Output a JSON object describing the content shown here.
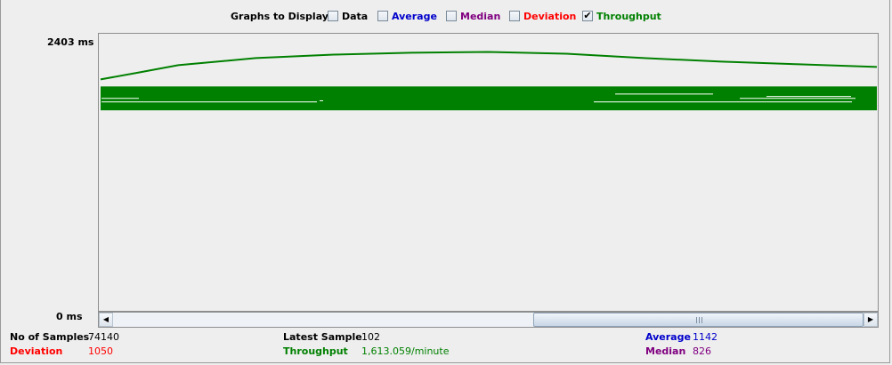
{
  "graphs": {
    "title": "Graphs to Display",
    "options": [
      {
        "label": "Data",
        "checked": false,
        "color": "#000000"
      },
      {
        "label": "Average",
        "checked": false,
        "color": "#0000cc"
      },
      {
        "label": "Median",
        "checked": false,
        "color": "#800080"
      },
      {
        "label": "Deviation",
        "checked": false,
        "color": "#ff0000"
      },
      {
        "label": "Throughput",
        "checked": true,
        "color": "#008000"
      }
    ],
    "check_mark": "✔"
  },
  "axis": {
    "max_label": "2403 ms",
    "min_label": "0 ms"
  },
  "scrollbar": {
    "position_fraction": 0.56,
    "visible_fraction": 0.44
  },
  "stats": {
    "samples": {
      "label": "No of Samples",
      "value": "74140"
    },
    "latest": {
      "label": "Latest Sample",
      "value": "102"
    },
    "average": {
      "label": "Average",
      "value": "1142"
    },
    "deviation": {
      "label": "Deviation",
      "value": "1050"
    },
    "throughput": {
      "label": "Throughput",
      "value": "1,613.059/minute"
    },
    "median": {
      "label": "Median",
      "value": "826"
    }
  },
  "colors": {
    "throughput": "#008000",
    "band": "#008000",
    "average": "#0000cc",
    "median": "#800080",
    "deviation": "#ff0000"
  },
  "chart_data": {
    "type": "line",
    "ylim": [
      0,
      2403
    ],
    "series": [
      {
        "name": "Throughput",
        "x": [
          0,
          5,
          10,
          20,
          30,
          40,
          50,
          60,
          70,
          80,
          90,
          100
        ],
        "values": [
          2007,
          2068,
          2130,
          2192,
          2222,
          2238,
          2245,
          2230,
          2192,
          2161,
          2138,
          2115
        ]
      }
    ],
    "band": {
      "upper": 1946,
      "lower": 1739
    }
  }
}
